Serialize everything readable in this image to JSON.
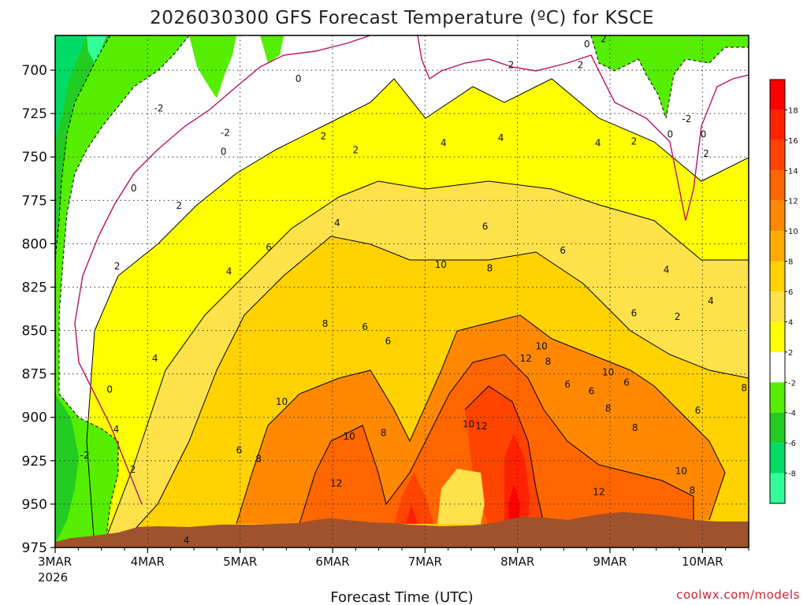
{
  "chart_data": {
    "type": "heatmap",
    "title": "2026030300 GFS Forecast Temperature (ºC) for KSCE",
    "xlabel": "Forecast Time (UTC)",
    "ylabel": "",
    "x_ticks": [
      "3MAR",
      "4MAR",
      "5MAR",
      "6MAR",
      "7MAR",
      "8MAR",
      "9MAR",
      "10MAR"
    ],
    "x_year_label": "2026",
    "x_range_days": [
      0,
      7.5
    ],
    "y_ticks": [
      700,
      725,
      750,
      775,
      800,
      825,
      850,
      875,
      900,
      925,
      950,
      975
    ],
    "y_range_hpa": [
      680,
      975
    ],
    "y_reversed": true,
    "grid": true,
    "colorbar": {
      "labels": [
        "18",
        "16",
        "14",
        "12",
        "10",
        "8",
        "6",
        "4",
        "2",
        "-2",
        "-4",
        "-6",
        "-8"
      ],
      "levels": [
        -10,
        -8,
        -6,
        -4,
        -2,
        2,
        4,
        6,
        8,
        10,
        12,
        14,
        16,
        18,
        20
      ],
      "colors": [
        "#33ff99",
        "#00dd66",
        "#22cc22",
        "#55ee00",
        "#ffffff",
        "#ffff00",
        "#ffe24a",
        "#ffd200",
        "#ffaa00",
        "#ff8800",
        "#ff6600",
        "#ff4400",
        "#ff2200",
        "#ff0000"
      ]
    },
    "contour_labels": [
      {
        "t": 0.32,
        "p": 922,
        "v": "-2"
      },
      {
        "t": 0.59,
        "p": 884,
        "v": "0"
      },
      {
        "t": 0.66,
        "p": 907,
        "v": "4"
      },
      {
        "t": 0.84,
        "p": 930,
        "v": "2"
      },
      {
        "t": 0.67,
        "p": 813,
        "v": "2"
      },
      {
        "t": 0.85,
        "p": 768,
        "v": "0"
      },
      {
        "t": 1.12,
        "p": 722,
        "v": "-2"
      },
      {
        "t": 1.34,
        "p": 778,
        "v": "2"
      },
      {
        "t": 1.08,
        "p": 866,
        "v": "4"
      },
      {
        "t": 1.42,
        "p": 971,
        "v": "4"
      },
      {
        "t": 1.84,
        "p": 736,
        "v": "-2"
      },
      {
        "t": 1.82,
        "p": 747,
        "v": "0"
      },
      {
        "t": 2.63,
        "p": 705,
        "v": "0"
      },
      {
        "t": 2.9,
        "p": 738,
        "v": "2"
      },
      {
        "t": 1.88,
        "p": 816,
        "v": "4"
      },
      {
        "t": 1.99,
        "p": 919,
        "v": "6"
      },
      {
        "t": 2.31,
        "p": 802,
        "v": "6"
      },
      {
        "t": 2.2,
        "p": 924,
        "v": "8"
      },
      {
        "t": 2.45,
        "p": 891,
        "v": "10"
      },
      {
        "t": 3.05,
        "p": 788,
        "v": "4"
      },
      {
        "t": 3.25,
        "p": 746,
        "v": "2"
      },
      {
        "t": 2.92,
        "p": 846,
        "v": "8"
      },
      {
        "t": 3.35,
        "p": 848,
        "v": "6"
      },
      {
        "t": 3.6,
        "p": 856,
        "v": "6"
      },
      {
        "t": 3.18,
        "p": 911,
        "v": "10"
      },
      {
        "t": 3.04,
        "p": 938,
        "v": "12"
      },
      {
        "t": 3.55,
        "p": 909,
        "v": "8"
      },
      {
        "t": 4.17,
        "p": 812,
        "v": "10"
      },
      {
        "t": 4.7,
        "p": 814,
        "v": "8"
      },
      {
        "t": 4.65,
        "p": 790,
        "v": "6"
      },
      {
        "t": 4.2,
        "p": 742,
        "v": "4"
      },
      {
        "t": 4.82,
        "p": 739,
        "v": "4"
      },
      {
        "t": 4.93,
        "p": 697,
        "v": "2"
      },
      {
        "t": 4.47,
        "p": 904,
        "v": "10"
      },
      {
        "t": 4.61,
        "p": 905,
        "v": "12"
      },
      {
        "t": 5.09,
        "p": 866,
        "v": "12"
      },
      {
        "t": 5.26,
        "p": 859,
        "v": "10"
      },
      {
        "t": 5.33,
        "p": 868,
        "v": "8"
      },
      {
        "t": 5.49,
        "p": 804,
        "v": "6"
      },
      {
        "t": 5.68,
        "p": 697,
        "v": "2"
      },
      {
        "t": 5.87,
        "p": 742,
        "v": "4"
      },
      {
        "t": 5.75,
        "p": 685,
        "v": "0"
      },
      {
        "t": 5.93,
        "p": 682,
        "v": "2"
      },
      {
        "t": 5.54,
        "p": 881,
        "v": "6"
      },
      {
        "t": 5.8,
        "p": 885,
        "v": "6"
      },
      {
        "t": 5.98,
        "p": 874,
        "v": "10"
      },
      {
        "t": 5.98,
        "p": 895,
        "v": "8"
      },
      {
        "t": 6.18,
        "p": 880,
        "v": "6"
      },
      {
        "t": 6.27,
        "p": 906,
        "v": "8"
      },
      {
        "t": 6.26,
        "p": 840,
        "v": "6"
      },
      {
        "t": 5.88,
        "p": 943,
        "v": "12"
      },
      {
        "t": 6.26,
        "p": 741,
        "v": "2"
      },
      {
        "t": 6.61,
        "p": 815,
        "v": "4"
      },
      {
        "t": 6.73,
        "p": 842,
        "v": "2"
      },
      {
        "t": 6.83,
        "p": 728,
        "v": "-2"
      },
      {
        "t": 6.65,
        "p": 737,
        "v": "0"
      },
      {
        "t": 7.01,
        "p": 737,
        "v": "0"
      },
      {
        "t": 7.04,
        "p": 748,
        "v": "2"
      },
      {
        "t": 7.09,
        "p": 833,
        "v": "4"
      },
      {
        "t": 6.95,
        "p": 896,
        "v": "6"
      },
      {
        "t": 7.45,
        "p": 883,
        "v": "8"
      },
      {
        "t": 6.77,
        "p": 931,
        "v": "10"
      },
      {
        "t": 6.89,
        "p": 942,
        "v": "8"
      }
    ]
  },
  "credit": "coolwx.com/models"
}
